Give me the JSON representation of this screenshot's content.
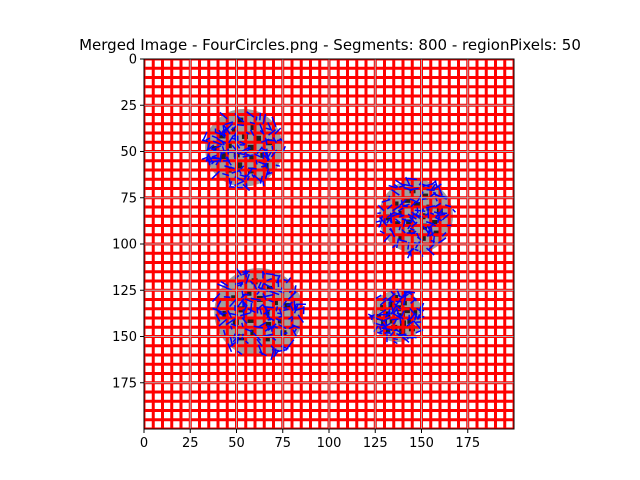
{
  "chart_data": {
    "type": "heatmap",
    "title": "Merged Image - FourCircles.png - Segments: 800 - regionPixels: 50",
    "xlabel": "",
    "ylabel": "",
    "xlim": [
      0,
      200
    ],
    "ylim": [
      200,
      0
    ],
    "y_inverted": true,
    "grid": true,
    "x_ticks": [
      0,
      25,
      50,
      75,
      100,
      125,
      150,
      175
    ],
    "y_ticks": [
      0,
      25,
      50,
      75,
      100,
      125,
      150,
      175
    ],
    "x_tick_labels": [
      "0",
      "25",
      "50",
      "75",
      "100",
      "125",
      "150",
      "175"
    ],
    "y_tick_labels": [
      "0",
      "25",
      "50",
      "75",
      "100",
      "125",
      "150",
      "175"
    ],
    "segment_grid_step": 5,
    "circles": [
      {
        "cx": 54,
        "cy": 48,
        "r": 21
      },
      {
        "cx": 147,
        "cy": 85,
        "r": 20
      },
      {
        "cx": 62,
        "cy": 137,
        "r": 24
      },
      {
        "cx": 137,
        "cy": 139,
        "r": 14
      }
    ],
    "colors": {
      "background": "#ffffff",
      "segment_border": "#ff0000",
      "segment_fill": "#ffffff",
      "circle_fill": "#a0a0a0",
      "circle_dark": "#202020",
      "boundary_lines": "#0000ff",
      "grid": "#b0b0b0"
    }
  }
}
